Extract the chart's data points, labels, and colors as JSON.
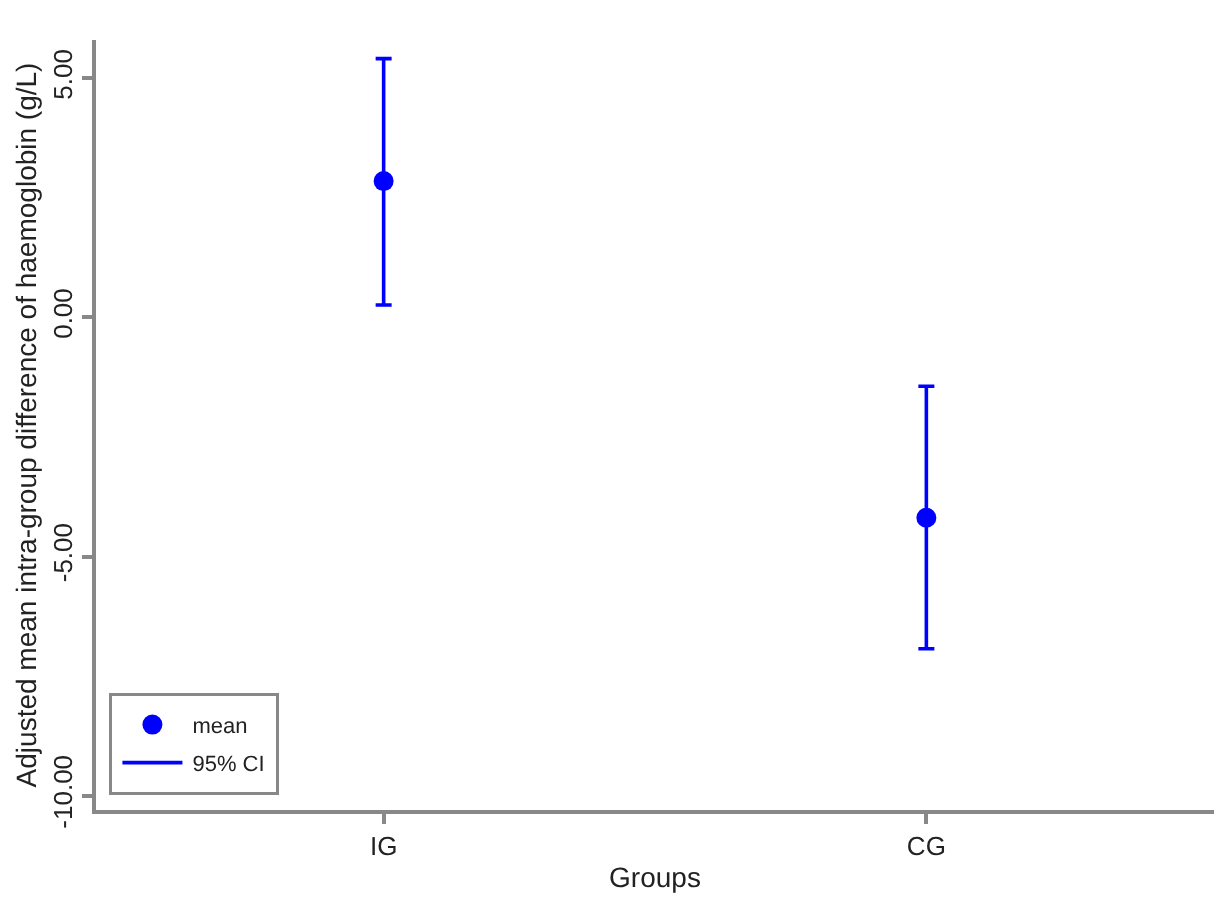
{
  "chart_data": {
    "type": "scatter",
    "xlabel": "Groups",
    "ylabel": "Adjusted mean intra-group difference of haemoglobin (g/L)",
    "categories": [
      "IG",
      "CG"
    ],
    "series": [
      {
        "name": "mean",
        "color": "#0000ff",
        "marker": "circle",
        "values": [
          2.85,
          -4.19
        ],
        "errors": [
          [
            0.26,
            5.41
          ],
          [
            -6.93,
            -1.44
          ]
        ]
      },
      {
        "name": "95% CI",
        "color": "#0000ff",
        "marker": "none",
        "line_style": "solid",
        "values": [
          null,
          null
        ]
      }
    ],
    "ylim": [
      -10.3,
      5.8
    ],
    "yticks": [
      {
        "value": -10,
        "label": "-10.00"
      },
      {
        "value": -5,
        "label": "-5.00"
      },
      {
        "value": 0,
        "label": "0.00"
      },
      {
        "value": 5,
        "label": "5.00"
      }
    ],
    "grid": false,
    "legend": "bottom left"
  }
}
